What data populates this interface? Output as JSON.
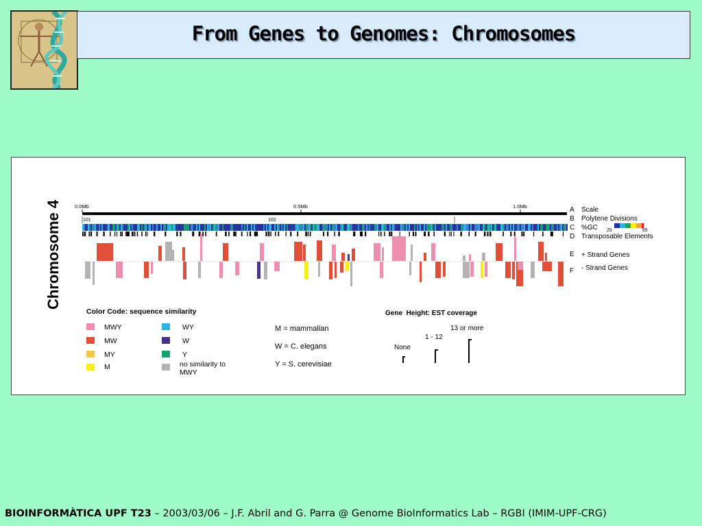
{
  "title": "From Genes to Genomes: Chromosomes",
  "figure": {
    "chromosome_label": "Chromosome 4",
    "scale_ticks": [
      "0.0Mb",
      "0.5Mb",
      "1.0Mb"
    ],
    "polytene_labels": [
      "101",
      "102"
    ],
    "gc_range": [
      "25",
      "65"
    ],
    "tracks": [
      {
        "letter": "A",
        "label": "Scale"
      },
      {
        "letter": "B",
        "label": "Polytene Divisions"
      },
      {
        "letter": "C",
        "label": "%GC"
      },
      {
        "letter": "D",
        "label": "Transposable Elements"
      },
      {
        "letter": "E",
        "label": "+ Strand Genes"
      },
      {
        "letter": "F",
        "label": "- Strand Genes"
      }
    ],
    "color_code_title": "Color Code: sequence similarity",
    "color_legend": [
      {
        "label": "MWY",
        "color": "#ef8fb0"
      },
      {
        "label": "MW",
        "color": "#e05038"
      },
      {
        "label": "MY",
        "color": "#f2c64a"
      },
      {
        "label": "M",
        "color": "#f7ee1a"
      },
      {
        "label": "WY",
        "color": "#2eb2e0"
      },
      {
        "label": "W",
        "color": "#4b2f8c"
      },
      {
        "label": "Y",
        "color": "#17a06a"
      },
      {
        "label": "no similarity to MWY",
        "color": "#b3b3b3"
      }
    ],
    "abbreviations": [
      "M = mammalian",
      "W = C. elegans",
      "Y = S. cerevisiae"
    ],
    "gene_height_title": "Gene  Height: EST coverage",
    "gene_height_levels": [
      "None",
      "1 - 12",
      "13 or more"
    ]
  },
  "footer": {
    "bold": "BIOINFORMÀTICA UPF T23",
    "rest": " – 2003/03/06 – J.F. Abril and G. Parra @ Genome BioInformatics Lab – RGBI (IMIM-UPF-CRG)"
  }
}
